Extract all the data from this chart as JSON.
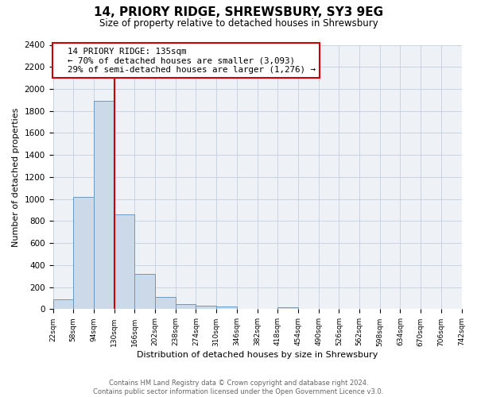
{
  "title": "14, PRIORY RIDGE, SHREWSBURY, SY3 9EG",
  "subtitle": "Size of property relative to detached houses in Shrewsbury",
  "xlabel": "Distribution of detached houses by size in Shrewsbury",
  "ylabel": "Number of detached properties",
  "footer_line1": "Contains HM Land Registry data © Crown copyright and database right 2024.",
  "footer_line2": "Contains public sector information licensed under the Open Government Licence v3.0.",
  "bin_edges": [
    22,
    58,
    94,
    130,
    166,
    202,
    238,
    274,
    310,
    346,
    382,
    418,
    454,
    490,
    526,
    562,
    598,
    634,
    670,
    706,
    742
  ],
  "bin_heights": [
    90,
    1020,
    1890,
    860,
    320,
    110,
    50,
    35,
    25,
    0,
    0,
    15,
    0,
    0,
    0,
    0,
    0,
    0,
    0,
    0
  ],
  "bar_facecolor": "#ccd9e8",
  "bar_edgecolor": "#6b9abf",
  "redline_x": 130,
  "ylim": [
    0,
    2400
  ],
  "yticks": [
    0,
    200,
    400,
    600,
    800,
    1000,
    1200,
    1400,
    1600,
    1800,
    2000,
    2200,
    2400
  ],
  "annotation_title": "14 PRIORY RIDGE: 135sqm",
  "annotation_line2": "← 70% of detached houses are smaller (3,093)",
  "annotation_line3": "29% of semi-detached houses are larger (1,276) →",
  "annotation_box_facecolor": "#ffffff",
  "annotation_box_edgecolor": "#cc0000",
  "redline_color": "#cc0000",
  "grid_color": "#c8d4e0",
  "background_color": "#ffffff",
  "plot_bg_color": "#eef2f7"
}
